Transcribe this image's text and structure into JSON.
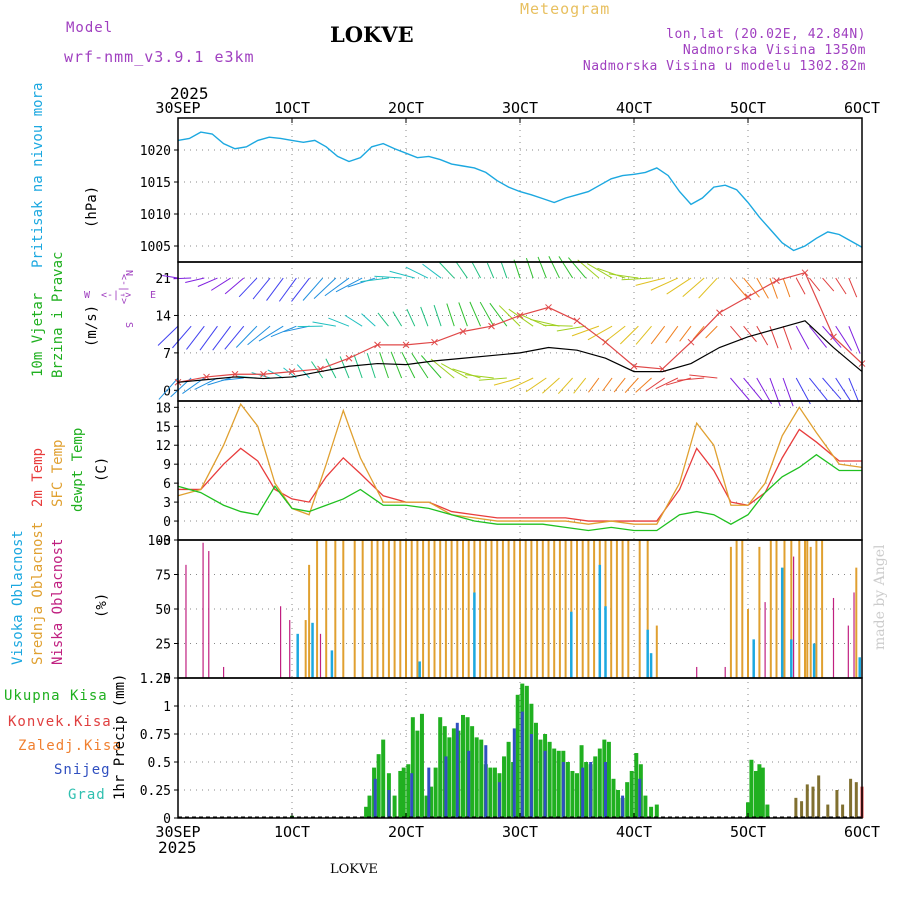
{
  "header": {
    "model_label": "Model",
    "model_name": "wrf-nmm_v3.9.1 e3km",
    "station": "LOKVE",
    "meteogram_label": "Meteogram",
    "lonlat": "lon,lat (20.02E, 42.84N)",
    "altitude": "Nadmorska Visina 1350m",
    "altitude_model": "Nadmorska Visina u modelu 1302.82m",
    "year_top": "2025",
    "year_bottom": "2025",
    "footer": "LOKVE",
    "watermark": "made by Angel"
  },
  "colors": {
    "pressure": "#1ca8e0",
    "wind_mean": "#000000",
    "wind_gust": "#e04848",
    "t2m": "#e83c3c",
    "tsfc": "#e0a030",
    "dewpt": "#20c020",
    "high_cloud": "#1ca8e0",
    "mid_cloud": "#e0a030",
    "low_cloud": "#c02080",
    "rain_total": "#20b020",
    "rain_conv": "#e04040",
    "rain_frz": "#f08030",
    "snow": "#3050c0",
    "hail": "#30c0b0",
    "label_purple": "#a040c0"
  },
  "chart_data": [
    {
      "type": "line",
      "id": "pressure",
      "ylabel": "(hPa)",
      "side_labels": [
        "Pritisak na nivou mora"
      ],
      "ylim": [
        1002.5,
        1025
      ],
      "yticks": [
        "1005",
        "1010",
        "1015",
        "1020"
      ],
      "ytick_values": [
        1005,
        1010,
        1015,
        1020
      ],
      "x_top_labels": [
        "30SEP",
        "1OCT",
        "2OCT",
        "3OCT",
        "4OCT",
        "5OCT",
        "6OCT"
      ],
      "xlim_days": [
        0,
        6
      ],
      "x": [
        0,
        0.1,
        0.2,
        0.3,
        0.4,
        0.5,
        0.6,
        0.7,
        0.8,
        0.9,
        1.0,
        1.1,
        1.2,
        1.3,
        1.4,
        1.5,
        1.6,
        1.7,
        1.8,
        1.9,
        2.0,
        2.1,
        2.2,
        2.3,
        2.4,
        2.5,
        2.6,
        2.7,
        2.8,
        2.9,
        3.0,
        3.1,
        3.2,
        3.3,
        3.4,
        3.5,
        3.6,
        3.7,
        3.8,
        3.9,
        4.0,
        4.1,
        4.2,
        4.3,
        4.4,
        4.5,
        4.6,
        4.7,
        4.8,
        4.9,
        5.0,
        5.1,
        5.2,
        5.3,
        5.4,
        5.5,
        5.6,
        5.7,
        5.8,
        5.9,
        6.0
      ],
      "series": [
        {
          "name": "pressure",
          "values": [
            1021.5,
            1021.8,
            1022.8,
            1022.5,
            1021.0,
            1020.2,
            1020.5,
            1021.5,
            1022.0,
            1021.8,
            1021.5,
            1021.2,
            1021.5,
            1020.5,
            1019.0,
            1018.2,
            1018.8,
            1020.5,
            1021.0,
            1020.2,
            1019.5,
            1018.8,
            1019.0,
            1018.5,
            1017.8,
            1017.5,
            1017.2,
            1016.5,
            1015.2,
            1014.2,
            1013.5,
            1013.0,
            1012.4,
            1011.8,
            1012.5,
            1013.0,
            1013.5,
            1014.5,
            1015.5,
            1016.0,
            1016.2,
            1016.5,
            1017.2,
            1016.0,
            1013.5,
            1011.5,
            1012.5,
            1014.2,
            1014.5,
            1013.8,
            1011.8,
            1009.5,
            1007.5,
            1005.5,
            1004.3,
            1005.0,
            1006.2,
            1007.2,
            1006.8,
            1005.8,
            1004.8
          ]
        }
      ]
    },
    {
      "type": "line",
      "id": "wind",
      "ylabel": "(m/s)",
      "side_labels": [
        "10m Vjetar",
        "Brzina i Pravac"
      ],
      "compass": {
        "n": "N",
        "e": "E",
        "s": "S",
        "w": "W",
        "arrow": "<-|->"
      },
      "ylim": [
        -2,
        24
      ],
      "yticks": [
        "0",
        "7",
        "14",
        "21"
      ],
      "ytick_values": [
        0,
        7,
        14,
        21
      ],
      "x": [
        0,
        0.25,
        0.5,
        0.75,
        1.0,
        1.25,
        1.5,
        1.75,
        2.0,
        2.25,
        2.5,
        2.75,
        3.0,
        3.25,
        3.5,
        3.75,
        4.0,
        4.25,
        4.5,
        4.75,
        5.0,
        5.25,
        5.5,
        5.75,
        6.0
      ],
      "series": [
        {
          "name": "mean",
          "values": [
            1.5,
            2.0,
            2.5,
            2.2,
            2.5,
            3.5,
            4.5,
            5.0,
            4.8,
            5.5,
            6.0,
            6.5,
            7.0,
            8.0,
            7.5,
            6.0,
            3.5,
            3.5,
            5.0,
            8.0,
            10.0,
            11.5,
            13.0,
            8.0,
            3.5
          ]
        },
        {
          "name": "gust",
          "values": [
            1.5,
            2.5,
            3.0,
            3.0,
            3.5,
            4.0,
            6.0,
            8.5,
            8.5,
            9.0,
            11.0,
            12.0,
            14.0,
            15.5,
            13.0,
            9.0,
            4.5,
            4.0,
            9.0,
            14.5,
            17.5,
            20.5,
            22.0,
            10.0,
            5.0
          ]
        }
      ]
    },
    {
      "type": "line",
      "id": "temperature",
      "ylabel": "(C)",
      "side_labels": [
        "2m Temp",
        "SFC Temp",
        "dewpt Temp"
      ],
      "ylim": [
        -3,
        19
      ],
      "yticks": [
        "-3",
        "0",
        "3",
        "6",
        "9",
        "12",
        "15",
        "18"
      ],
      "ytick_values": [
        -3,
        0,
        3,
        6,
        9,
        12,
        15,
        18
      ],
      "x": [
        0,
        0.2,
        0.4,
        0.55,
        0.7,
        0.85,
        1.0,
        1.15,
        1.3,
        1.45,
        1.6,
        1.8,
        2.0,
        2.2,
        2.4,
        2.6,
        2.8,
        3.0,
        3.2,
        3.4,
        3.6,
        3.8,
        4.0,
        4.2,
        4.4,
        4.55,
        4.7,
        4.85,
        5.0,
        5.15,
        5.3,
        5.45,
        5.6,
        5.8,
        6.0
      ],
      "series": [
        {
          "name": "t2m",
          "values": [
            5.0,
            5.0,
            9.0,
            11.5,
            9.5,
            5.0,
            3.5,
            3.0,
            7.0,
            10.0,
            7.5,
            4.0,
            3.0,
            3.0,
            1.5,
            1.0,
            0.5,
            0.5,
            0.5,
            0.5,
            0.0,
            0.0,
            0.0,
            0.0,
            5.0,
            11.5,
            8.0,
            3.0,
            2.5,
            4.5,
            10.0,
            14.5,
            12.5,
            9.5,
            9.5
          ]
        },
        {
          "name": "tsfc",
          "values": [
            4.0,
            5.0,
            12.0,
            18.5,
            15.0,
            6.0,
            2.0,
            1.0,
            9.0,
            17.5,
            10.0,
            3.0,
            3.0,
            3.0,
            1.0,
            0.5,
            0.0,
            0.0,
            0.0,
            0.0,
            -0.5,
            0.0,
            -0.5,
            -0.5,
            6.0,
            15.5,
            12.0,
            2.5,
            2.5,
            6.0,
            13.5,
            18.0,
            14.0,
            9.0,
            8.5
          ]
        },
        {
          "name": "dewpt",
          "values": [
            5.5,
            4.5,
            2.5,
            1.5,
            1.0,
            5.5,
            2.0,
            1.5,
            2.5,
            3.5,
            5.0,
            2.5,
            2.5,
            2.0,
            1.0,
            0.0,
            -0.5,
            -0.5,
            -0.5,
            -1.0,
            -1.5,
            -1.0,
            -1.5,
            -1.5,
            1.0,
            1.5,
            1.0,
            -0.5,
            1.0,
            4.5,
            7.0,
            8.5,
            10.5,
            8.0,
            8.0
          ]
        }
      ]
    },
    {
      "type": "bar",
      "id": "clouds",
      "ylabel": "(%)",
      "side_labels": [
        "Visoka Oblacnost",
        "Srednja Oblacnost",
        "Niska Oblacnost"
      ],
      "ylim": [
        0,
        100
      ],
      "yticks": [
        "0",
        "25",
        "50",
        "75",
        "100"
      ],
      "ytick_values": [
        0,
        25,
        50,
        75,
        100
      ],
      "series": [
        {
          "name": "low",
          "x": [
            0.07,
            0.22,
            0.27,
            0.4,
            0.9,
            0.98,
            1.25,
            4.55,
            4.8,
            5.05,
            5.15,
            5.4,
            5.6,
            5.75,
            5.88,
            5.93
          ],
          "values": [
            82,
            98,
            92,
            8,
            52,
            42,
            32,
            8,
            8,
            18,
            55,
            88,
            42,
            58,
            38,
            62
          ]
        },
        {
          "name": "mid",
          "x": [
            1.12,
            1.15,
            1.22,
            1.3,
            1.38,
            1.45,
            1.55,
            1.62,
            1.7,
            1.75,
            1.8,
            1.85,
            1.9,
            1.95,
            2.0,
            2.05,
            2.1,
            2.15,
            2.2,
            2.25,
            2.3,
            2.35,
            2.4,
            2.45,
            2.5,
            2.55,
            2.6,
            2.65,
            2.7,
            2.75,
            2.8,
            2.85,
            2.9,
            2.95,
            3.0,
            3.05,
            3.1,
            3.15,
            3.2,
            3.25,
            3.3,
            3.35,
            3.4,
            3.45,
            3.5,
            3.55,
            3.6,
            3.65,
            3.7,
            3.75,
            3.8,
            3.85,
            3.9,
            3.95,
            4.05,
            4.12,
            4.2,
            4.85,
            4.9,
            4.95,
            5.0,
            5.1,
            5.2,
            5.25,
            5.32,
            5.38,
            5.45,
            5.5,
            5.52,
            5.55,
            5.6,
            5.65,
            5.95
          ],
          "values": [
            42,
            82,
            100,
            100,
            100,
            100,
            100,
            100,
            100,
            100,
            100,
            100,
            100,
            100,
            100,
            100,
            100,
            100,
            100,
            100,
            100,
            100,
            100,
            100,
            100,
            100,
            100,
            100,
            100,
            100,
            100,
            100,
            100,
            100,
            100,
            100,
            100,
            100,
            100,
            100,
            100,
            100,
            100,
            100,
            100,
            100,
            100,
            100,
            100,
            100,
            100,
            100,
            100,
            100,
            100,
            100,
            38,
            95,
            100,
            100,
            50,
            95,
            100,
            100,
            100,
            100,
            100,
            100,
            100,
            95,
            100,
            100,
            80
          ]
        },
        {
          "name": "high",
          "x": [
            1.05,
            1.18,
            1.35,
            2.12,
            2.6,
            3.45,
            3.7,
            3.75,
            4.12,
            4.15,
            5.05,
            5.3,
            5.38,
            5.58,
            5.98
          ],
          "values": [
            32,
            40,
            20,
            12,
            62,
            48,
            82,
            52,
            35,
            18,
            28,
            80,
            28,
            25,
            15
          ]
        }
      ]
    },
    {
      "type": "bar",
      "id": "precip",
      "ylabel": "1hr Precip (mm)",
      "legend": [
        "Ukupna Kisa",
        "Konvek.Kisa",
        "Zaledj.Kisa",
        "Snijeg",
        "Grad"
      ],
      "ylim": [
        0,
        1.25
      ],
      "yticks": [
        "0",
        "0.25",
        "0.5",
        "0.75",
        "1",
        "1.25"
      ],
      "ytick_values": [
        0,
        0.25,
        0.5,
        0.75,
        1,
        1.25
      ],
      "x_bottom_labels": [
        "30SEP",
        "1OCT",
        "2OCT",
        "3OCT",
        "4OCT",
        "5OCT",
        "6OCT"
      ],
      "series": [
        {
          "name": "total",
          "x": [
            1.0,
            1.65,
            1.68,
            1.72,
            1.76,
            1.8,
            1.85,
            1.9,
            1.95,
            1.98,
            2.02,
            2.06,
            2.1,
            2.14,
            2.18,
            2.22,
            2.26,
            2.3,
            2.34,
            2.38,
            2.42,
            2.46,
            2.5,
            2.54,
            2.58,
            2.62,
            2.66,
            2.7,
            2.74,
            2.78,
            2.82,
            2.86,
            2.9,
            2.94,
            2.98,
            3.02,
            3.06,
            3.1,
            3.14,
            3.18,
            3.22,
            3.26,
            3.3,
            3.34,
            3.38,
            3.42,
            3.46,
            3.5,
            3.54,
            3.58,
            3.62,
            3.66,
            3.7,
            3.74,
            3.78,
            3.82,
            3.86,
            3.9,
            3.94,
            3.98,
            4.02,
            4.06,
            4.1,
            4.15,
            4.2,
            5.0,
            5.03,
            5.07,
            5.1,
            5.13,
            5.17
          ],
          "values": [
            0.02,
            0.1,
            0.2,
            0.45,
            0.57,
            0.7,
            0.4,
            0.2,
            0.42,
            0.45,
            0.48,
            0.9,
            0.78,
            0.93,
            0.2,
            0.28,
            0.45,
            0.9,
            0.82,
            0.72,
            0.8,
            0.78,
            0.92,
            0.9,
            0.82,
            0.72,
            0.7,
            0.48,
            0.45,
            0.45,
            0.4,
            0.55,
            0.68,
            0.5,
            1.1,
            1.2,
            1.18,
            1.02,
            0.85,
            0.7,
            0.75,
            0.68,
            0.62,
            0.6,
            0.6,
            0.5,
            0.42,
            0.4,
            0.65,
            0.5,
            0.48,
            0.55,
            0.62,
            0.7,
            0.68,
            0.35,
            0.25,
            0.18,
            0.32,
            0.42,
            0.58,
            0.48,
            0.2,
            0.1,
            0.12,
            0.14,
            0.52,
            0.42,
            0.48,
            0.45,
            0.12
          ]
        },
        {
          "name": "conv",
          "x": [
            6.0
          ],
          "values": [
            0.28
          ]
        },
        {
          "name": "frz",
          "x": [
            5.42,
            5.47,
            5.52,
            5.57,
            5.62,
            5.7,
            5.78,
            5.83,
            5.9,
            5.95
          ],
          "values": [
            0.18,
            0.15,
            0.3,
            0.28,
            0.38,
            0.12,
            0.25,
            0.12,
            0.35,
            0.32
          ]
        },
        {
          "name": "snow",
          "x": [
            1.73,
            1.85,
            2.05,
            2.2,
            2.35,
            2.45,
            2.55,
            2.7,
            2.82,
            2.95,
            3.02,
            3.1,
            3.22,
            3.38,
            3.55,
            3.62,
            3.75,
            3.9,
            4.05
          ],
          "values": [
            0.35,
            0.25,
            0.4,
            0.45,
            0.55,
            0.85,
            0.6,
            0.65,
            0.32,
            0.8,
            0.95,
            0.75,
            0.6,
            0.5,
            0.45,
            0.5,
            0.5,
            0.2,
            0.35
          ]
        },
        {
          "name": "hail",
          "x": [],
          "values": []
        }
      ]
    }
  ]
}
